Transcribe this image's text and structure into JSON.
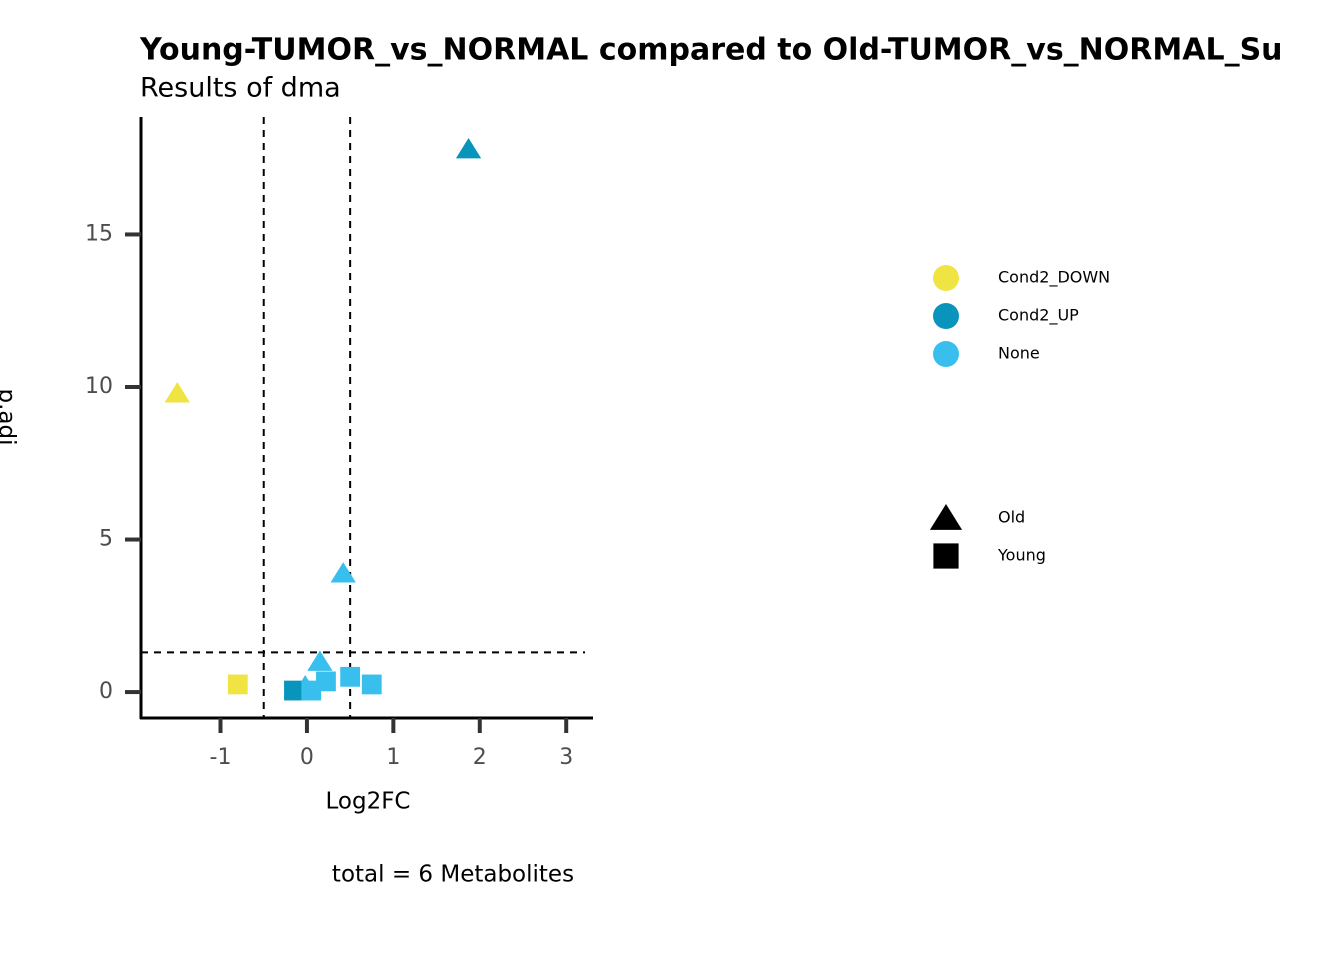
{
  "chart_data": {
    "type": "scatter",
    "title": "Young-TUMOR_vs_NORMAL compared to Old-TUMOR_vs_NORMAL_Su",
    "subtitle": "Results of dma",
    "x_label": "Log2FC",
    "y_label": "p.adj",
    "caption": "total = 6 Metabolites",
    "xlim": [
      -1.92,
      3.31
    ],
    "ylim": [
      -0.85,
      18.85
    ],
    "xticks": [
      -1,
      0,
      1,
      2,
      3
    ],
    "yticks": [
      0,
      5,
      10,
      15
    ],
    "vlines": [
      -0.5,
      0.5
    ],
    "hline": 1.3,
    "color_legend": [
      {
        "name": "Cond2_DOWN",
        "color": "#f0e442"
      },
      {
        "name": "Cond2_UP",
        "color": "#0894bb"
      },
      {
        "name": "None",
        "color": "#38bfee"
      }
    ],
    "shape_legend": [
      {
        "name": "Old",
        "marker": "triangle"
      },
      {
        "name": "Young",
        "marker": "square"
      }
    ],
    "points": {
      "x": [
        1.87,
        -1.5,
        0.42,
        0.15,
        -0.02,
        -0.8,
        -0.15,
        0.05,
        0.22,
        0.5,
        0.75
      ],
      "y": [
        17.8,
        9.8,
        3.9,
        1.0,
        0.2,
        0.25,
        0.05,
        0.05,
        0.35,
        0.5,
        0.25
      ],
      "color": [
        "Cond2_UP",
        "Cond2_DOWN",
        "None",
        "None",
        "None",
        "Cond2_DOWN",
        "Cond2_UP",
        "None",
        "None",
        "None",
        "None"
      ],
      "shape": [
        "Old",
        "Old",
        "Old",
        "Old",
        "Old",
        "Young",
        "Young",
        "Young",
        "Young",
        "Young",
        "Young"
      ]
    }
  }
}
